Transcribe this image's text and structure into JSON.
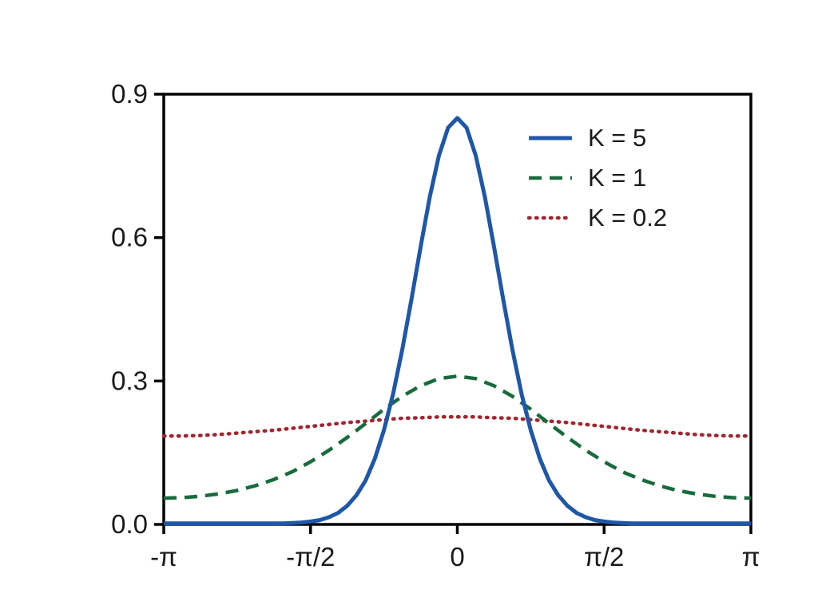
{
  "chart_data": {
    "type": "line",
    "title": "",
    "xlabel": "",
    "ylabel": "",
    "grid": false,
    "background": "#ffffff",
    "axis_color": "#000000",
    "text_color": "#1a1a1a",
    "legend_position": "upper-right",
    "xlim_pi_units": [
      -1,
      1
    ],
    "ylim": [
      0,
      0.9
    ],
    "x_ticks": [
      {
        "value": -1.0,
        "label": "-π"
      },
      {
        "value": -0.5,
        "label": "-π/2"
      },
      {
        "value": 0.0,
        "label": "0"
      },
      {
        "value": 0.5,
        "label": "π/2"
      },
      {
        "value": 1.0,
        "label": "π"
      }
    ],
    "y_ticks": [
      {
        "value": 0.0,
        "label": "0.0"
      },
      {
        "value": 0.3,
        "label": "0.3"
      },
      {
        "value": 0.6,
        "label": "0.6"
      },
      {
        "value": 0.9,
        "label": "0.9"
      }
    ],
    "series": [
      {
        "name": "K = 5",
        "style": "solid",
        "color": "#1f57a8",
        "x_units": "pi",
        "x_start": -1,
        "x_step": 0.03125,
        "y": [
          0.002,
          0.002,
          0.002,
          0.002,
          0.002,
          0.002,
          0.002,
          0.002,
          0.002,
          0.002,
          0.002,
          0.002,
          0.002,
          0.002,
          0.003,
          0.004,
          0.006,
          0.009,
          0.015,
          0.024,
          0.039,
          0.061,
          0.092,
          0.137,
          0.197,
          0.273,
          0.366,
          0.471,
          0.581,
          0.685,
          0.772,
          0.83,
          0.85,
          0.83,
          0.772,
          0.685,
          0.581,
          0.471,
          0.366,
          0.273,
          0.197,
          0.137,
          0.092,
          0.061,
          0.039,
          0.024,
          0.015,
          0.009,
          0.006,
          0.004,
          0.003,
          0.002,
          0.002,
          0.002,
          0.002,
          0.002,
          0.002,
          0.002,
          0.002,
          0.002,
          0.002,
          0.002,
          0.002,
          0.002,
          0.002
        ]
      },
      {
        "name": "K = 1",
        "style": "dashed",
        "color": "#186b3c",
        "x_units": "pi",
        "x_start": -1,
        "x_step": 0.0625,
        "y": [
          0.055,
          0.056,
          0.059,
          0.064,
          0.071,
          0.081,
          0.094,
          0.11,
          0.131,
          0.155,
          0.182,
          0.211,
          0.241,
          0.268,
          0.29,
          0.305,
          0.31,
          0.305,
          0.29,
          0.268,
          0.241,
          0.211,
          0.182,
          0.155,
          0.131,
          0.11,
          0.094,
          0.081,
          0.071,
          0.064,
          0.059,
          0.056,
          0.055
        ]
      },
      {
        "name": "K = 0.2",
        "style": "dotted",
        "color": "#a2252f",
        "x_units": "pi",
        "x_start": -1,
        "x_step": 0.0625,
        "y": [
          0.185,
          0.185,
          0.186,
          0.188,
          0.191,
          0.194,
          0.197,
          0.201,
          0.205,
          0.209,
          0.213,
          0.216,
          0.219,
          0.222,
          0.223,
          0.225,
          0.225,
          0.225,
          0.223,
          0.222,
          0.219,
          0.216,
          0.213,
          0.209,
          0.205,
          0.201,
          0.197,
          0.194,
          0.191,
          0.188,
          0.186,
          0.185,
          0.185
        ]
      }
    ]
  }
}
